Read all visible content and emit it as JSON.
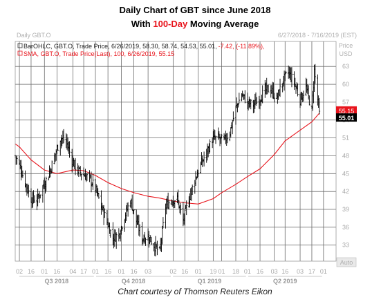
{
  "header": {
    "title_line1": "Daily Chart of GBT since June 2018",
    "title_line2_prefix": "With ",
    "title_line2_highlight": "100-Day",
    "title_line2_suffix": " Moving Average"
  },
  "chart_window": {
    "name": "Daily GBT.O",
    "date_range": "6/27/2018 - 7/16/2019 (EST)",
    "price_header": "Price",
    "currency": "USD",
    "auto_label": "Auto"
  },
  "legend": {
    "ohlc": "BarOHLC, GBT.O, Trade Price, 6/26/2019, 58.30, 58.74, 54.53, 55.01,",
    "ohlc_change": "-7.42, (-11.89%),",
    "sma": "SMA, GBT.O, Trade Price(Last),  100,  6/26/2019, 55.15"
  },
  "caption": "Chart courtesy of Thomson Reuters Eikon",
  "colors": {
    "accent": "#e8141c",
    "bars": "#000000",
    "sma": "#e8141c",
    "grid": "#6a6a6a"
  },
  "chart_data": {
    "type": "line",
    "title": "Daily Chart of GBT since June 2018",
    "ylim": [
      30.3,
      67.2
    ],
    "yticks": [
      33,
      36,
      39,
      42,
      45,
      48,
      51,
      54,
      57,
      60,
      63
    ],
    "xlim": [
      "2018-06-27",
      "2019-07-16"
    ],
    "x_tick_labels": [
      {
        "date": "2018-07-02",
        "label": "02"
      },
      {
        "date": "2018-07-16",
        "label": "16"
      },
      {
        "date": "2018-08-01",
        "label": "01"
      },
      {
        "date": "2018-08-16",
        "label": "16"
      },
      {
        "date": "2018-09-04",
        "label": "04"
      },
      {
        "date": "2018-09-17",
        "label": "17"
      },
      {
        "date": "2018-10-01",
        "label": "01"
      },
      {
        "date": "2018-10-16",
        "label": "16"
      },
      {
        "date": "2018-11-01",
        "label": "01"
      },
      {
        "date": "2018-11-16",
        "label": "16"
      },
      {
        "date": "2018-12-03",
        "label": "03"
      },
      {
        "date": "2019-01-02",
        "label": "02"
      },
      {
        "date": "2019-01-16",
        "label": "16"
      },
      {
        "date": "2019-02-01",
        "label": "01"
      },
      {
        "date": "2019-02-19",
        "label": "19"
      },
      {
        "date": "2019-03-01",
        "label": "01"
      },
      {
        "date": "2019-03-18",
        "label": "18"
      },
      {
        "date": "2019-04-01",
        "label": "01"
      },
      {
        "date": "2019-04-16",
        "label": "16"
      },
      {
        "date": "2019-05-03",
        "label": "03"
      },
      {
        "date": "2019-05-16",
        "label": "16"
      },
      {
        "date": "2019-06-03",
        "label": "03"
      },
      {
        "date": "2019-06-17",
        "label": "17"
      },
      {
        "date": "2019-07-01",
        "label": "01"
      }
    ],
    "quarters": [
      {
        "label": "Q3 2018",
        "start": "2018-07-01",
        "end": "2018-09-30"
      },
      {
        "label": "Q4 2018",
        "start": "2018-10-01",
        "end": "2018-12-31"
      },
      {
        "label": "Q1 2019",
        "start": "2019-01-01",
        "end": "2019-03-31"
      },
      {
        "label": "Q2 2019",
        "start": "2019-04-01",
        "end": "2019-06-30"
      }
    ],
    "last_values": {
      "sma": 55.15,
      "close": 55.01
    },
    "series": [
      {
        "kind": "ohlc",
        "points": [
          [
            "2018-06-27",
            48.0
          ],
          [
            "2018-07-02",
            46.5
          ],
          [
            "2018-07-09",
            43.5
          ],
          [
            "2018-07-16",
            40.8
          ],
          [
            "2018-07-23",
            40.5
          ],
          [
            "2018-07-30",
            42.8
          ],
          [
            "2018-08-06",
            44.8
          ],
          [
            "2018-08-13",
            47.8
          ],
          [
            "2018-08-20",
            51.0
          ],
          [
            "2018-08-27",
            50.5
          ],
          [
            "2018-09-03",
            47.2
          ],
          [
            "2018-09-10",
            45.5
          ],
          [
            "2018-09-17",
            44.8
          ],
          [
            "2018-09-24",
            44.2
          ],
          [
            "2018-10-01",
            42.5
          ],
          [
            "2018-10-08",
            39.5
          ],
          [
            "2018-10-15",
            36.8
          ],
          [
            "2018-10-22",
            34.2
          ],
          [
            "2018-10-29",
            34.8
          ],
          [
            "2018-11-05",
            37.8
          ],
          [
            "2018-11-12",
            40.6
          ],
          [
            "2018-11-19",
            37.0
          ],
          [
            "2018-11-26",
            34.2
          ],
          [
            "2018-12-03",
            34.5
          ],
          [
            "2018-12-10",
            33.0
          ],
          [
            "2018-12-17",
            31.8
          ],
          [
            "2018-12-24",
            39.5
          ],
          [
            "2018-12-31",
            40.6
          ],
          [
            "2019-01-07",
            40.8
          ],
          [
            "2019-01-14",
            37.0
          ],
          [
            "2019-01-21",
            40.8
          ],
          [
            "2019-01-28",
            44.0
          ],
          [
            "2019-02-04",
            46.5
          ],
          [
            "2019-02-11",
            48.5
          ],
          [
            "2019-02-18",
            50.8
          ],
          [
            "2019-02-25",
            51.0
          ],
          [
            "2019-03-04",
            50.5
          ],
          [
            "2019-03-11",
            52.0
          ],
          [
            "2019-03-18",
            56.0
          ],
          [
            "2019-03-25",
            58.3
          ],
          [
            "2019-04-01",
            57.0
          ],
          [
            "2019-04-08",
            56.5
          ],
          [
            "2019-04-15",
            57.5
          ],
          [
            "2019-04-22",
            59.0
          ],
          [
            "2019-04-29",
            59.2
          ],
          [
            "2019-05-06",
            57.5
          ],
          [
            "2019-05-13",
            60.5
          ],
          [
            "2019-05-20",
            62.0
          ],
          [
            "2019-05-27",
            60.3
          ],
          [
            "2019-06-03",
            57.5
          ],
          [
            "2019-06-10",
            59.5
          ],
          [
            "2019-06-17",
            55.5
          ],
          [
            "2019-06-20",
            62.4
          ],
          [
            "2019-06-26",
            55.01
          ]
        ]
      },
      {
        "kind": "sma",
        "name": "SMA 100",
        "points": [
          [
            "2018-06-27",
            50.0
          ],
          [
            "2018-07-02",
            49.5
          ],
          [
            "2018-07-16",
            47.3
          ],
          [
            "2018-08-01",
            45.6
          ],
          [
            "2018-08-16",
            45.0
          ],
          [
            "2018-09-04",
            45.6
          ],
          [
            "2018-09-17",
            45.5
          ],
          [
            "2018-10-01",
            44.7
          ],
          [
            "2018-10-16",
            43.5
          ],
          [
            "2018-11-01",
            42.5
          ],
          [
            "2018-11-16",
            41.8
          ],
          [
            "2018-12-03",
            41.2
          ],
          [
            "2018-12-17",
            40.9
          ],
          [
            "2019-01-02",
            40.4
          ],
          [
            "2019-01-16",
            40.1
          ],
          [
            "2019-02-01",
            39.9
          ],
          [
            "2019-02-19",
            40.8
          ],
          [
            "2019-03-01",
            41.8
          ],
          [
            "2019-03-18",
            43.2
          ],
          [
            "2019-04-01",
            44.5
          ],
          [
            "2019-04-16",
            45.8
          ],
          [
            "2019-05-03",
            48.2
          ],
          [
            "2019-05-16",
            50.5
          ],
          [
            "2019-06-03",
            52.3
          ],
          [
            "2019-06-17",
            53.7
          ],
          [
            "2019-06-26",
            55.15
          ]
        ]
      }
    ]
  }
}
